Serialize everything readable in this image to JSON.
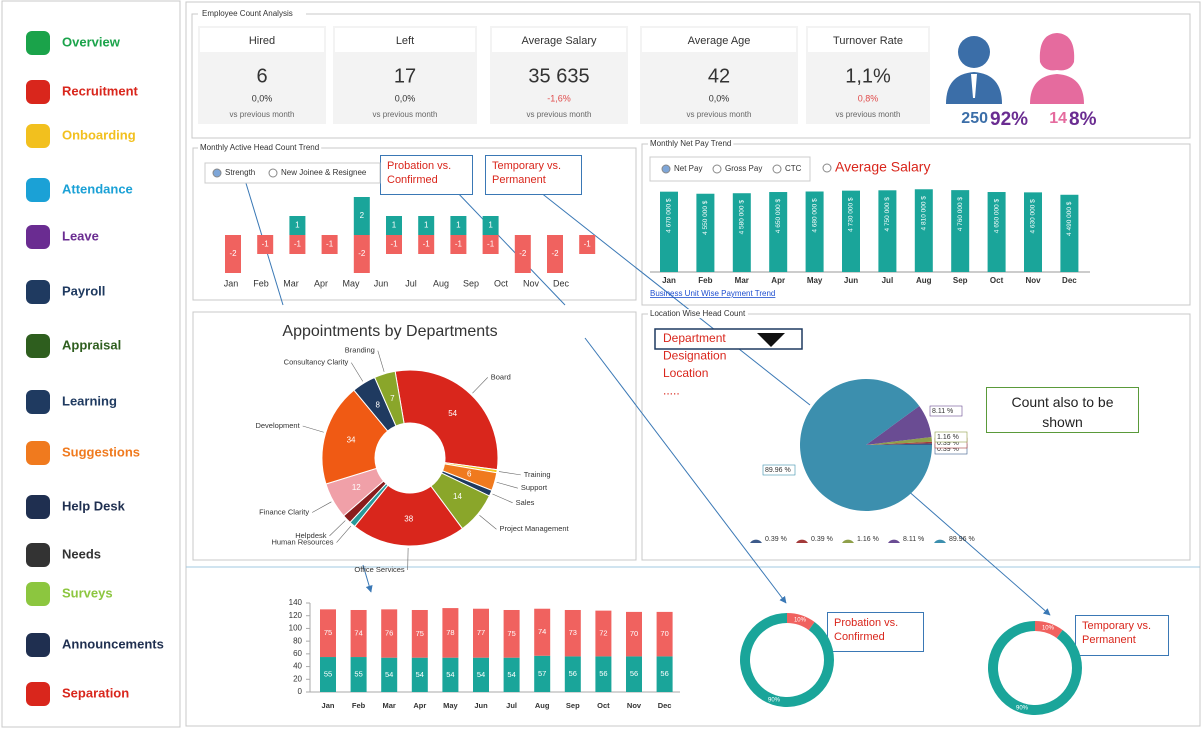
{
  "sidebar": {
    "items": [
      {
        "label": "Overview",
        "color": "#1aa34a"
      },
      {
        "label": "Recruitment",
        "color": "#d9261c"
      },
      {
        "label": "Onboarding",
        "color": "#f2c01e"
      },
      {
        "label": "Attendance",
        "color": "#1ba1d6"
      },
      {
        "label": "Leave",
        "color": "#6a2c91"
      },
      {
        "label": "Payroll",
        "color": "#1f3a60"
      },
      {
        "label": "Appraisal",
        "color": "#2e5e1e"
      },
      {
        "label": "Learning",
        "color": "#1f3a60"
      },
      {
        "label": "Suggestions",
        "color": "#f07a1e"
      },
      {
        "label": "Help Desk",
        "color": "#1f2f50"
      },
      {
        "label": "Needs",
        "color": "#333333"
      },
      {
        "label": "Surveys",
        "color": "#8cc63f"
      },
      {
        "label": "Announcements",
        "color": "#1f2f50"
      },
      {
        "label": "Separation",
        "color": "#d9261c"
      }
    ]
  },
  "kpi": {
    "section_title": "Employee Count Analysis",
    "cards": [
      {
        "title": "Hired",
        "value": "6",
        "change": "0,0%",
        "note": "vs previous month",
        "change_color": "#333333"
      },
      {
        "title": "Left",
        "value": "17",
        "change": "0,0%",
        "note": "vs previous month",
        "change_color": "#333333"
      },
      {
        "title": "Average Salary",
        "value": "35 635",
        "change": "-1,6%",
        "note": "vs previous month",
        "change_color": "#e04b4b"
      },
      {
        "title": "Average Age",
        "value": "42",
        "change": "0,0%",
        "note": "vs previous month",
        "change_color": "#333333"
      },
      {
        "title": "Turnover Rate",
        "value": "1,1%",
        "change": "0,8%",
        "note": "vs previous month",
        "change_color": "#e04b4b"
      }
    ]
  },
  "gender": {
    "male": {
      "count": "250",
      "share": "92%"
    },
    "female": {
      "count": "14",
      "share": "8%"
    }
  },
  "note": "Count also to be shown",
  "chart_data": [
    {
      "type": "bar",
      "title": "Monthly Active Head Count Trend",
      "options": [
        "Strength",
        "New Joinee & Resignee"
      ],
      "categories": [
        "Jan",
        "Feb",
        "Mar",
        "Apr",
        "May",
        "Jun",
        "Jul",
        "Aug",
        "Sep",
        "Oct",
        "Nov",
        "Dec"
      ],
      "series": [
        {
          "color": "#1aa59a",
          "values": [
            null,
            null,
            1,
            null,
            2,
            1,
            1,
            1,
            1,
            null,
            null,
            null
          ]
        },
        {
          "color": "#f0625f",
          "values": [
            -2,
            -1,
            -1,
            -1,
            -2,
            -1,
            -1,
            -1,
            -1,
            -2,
            -2,
            -1
          ]
        }
      ],
      "ylim": [
        -2.5,
        2.2
      ]
    },
    {
      "type": "bar",
      "title": "Monthly Net Pay Trend",
      "options": [
        "Net Pay",
        "Gross Pay",
        "CTC"
      ],
      "alt_option": "Average Salary",
      "categories": [
        "Jan",
        "Feb",
        "Mar",
        "Apr",
        "May",
        "Jun",
        "Jul",
        "Aug",
        "Sep",
        "Oct",
        "Nov",
        "Dec"
      ],
      "values": [
        4670000,
        4550000,
        4580000,
        4650000,
        4680000,
        4730000,
        4750000,
        4810000,
        4760000,
        4650000,
        4630000,
        4490000
      ],
      "value_labels": [
        "4 670 000 $",
        "4 550 000 $",
        "4 580 000 $",
        "4 650 000 $",
        "4 680 000 $",
        "4 730 000 $",
        "4 750 000 $",
        "4 810 000 $",
        "4 760 000 $",
        "4 650 000 $",
        "4 630 000 $",
        "4 490 000 $"
      ],
      "color": "#1aa59a",
      "ylim": [
        0,
        5000000
      ],
      "link": "Business Unit Wise Payment Trend"
    },
    {
      "type": "donut",
      "title": "Appointments by Departments",
      "categories": [
        "Board",
        "Training",
        "Support",
        "Sales",
        "Project Management",
        "Office Services",
        "Human Resources",
        "Helpdesk",
        "Finance Clarity",
        "Development",
        "Consultancy Clarity",
        "Branding"
      ],
      "values": [
        54,
        1,
        6,
        2,
        14,
        38,
        2,
        3,
        12,
        34,
        8,
        7
      ],
      "colors": [
        "#d9261c",
        "#f2c81e",
        "#f07a1e",
        "#1f3a60",
        "#8aa62a",
        "#d9261c",
        "#2a9a9a",
        "#8a1c1c",
        "#f0a0a8",
        "#f05a14",
        "#1f3a60",
        "#8aa62a"
      ]
    },
    {
      "type": "pie",
      "title": "Location Wise Head Count",
      "filter_options": [
        "Department",
        "Designation",
        "Location",
        "....."
      ],
      "values": [
        0.39,
        0.39,
        1.16,
        8.11,
        89.96
      ],
      "value_labels": [
        "0.39 %",
        "0.39 %",
        "1.16 %",
        "8.11 %",
        "89.96 %"
      ],
      "colors": [
        "#3d5a8a",
        "#a33a3a",
        "#8fa04a",
        "#6a4c93",
        "#3c8fae"
      ]
    },
    {
      "type": "stacked_bar",
      "categories": [
        "Jan",
        "Feb",
        "Mar",
        "Apr",
        "May",
        "Jun",
        "Jul",
        "Aug",
        "Sep",
        "Oct",
        "Nov",
        "Dec"
      ],
      "series": [
        {
          "color": "#1aa59a",
          "values": [
            55,
            55,
            54,
            54,
            54,
            54,
            54,
            57,
            56,
            56,
            56,
            56
          ]
        },
        {
          "color": "#f0625f",
          "values": [
            75,
            74,
            76,
            75,
            78,
            77,
            75,
            74,
            73,
            72,
            70,
            70
          ]
        }
      ],
      "ylim": [
        0,
        140
      ],
      "yticks": [
        0,
        20,
        40,
        60,
        80,
        100,
        120,
        140
      ]
    },
    {
      "type": "donut",
      "title": "Probation vs. Confirmed",
      "values": [
        10,
        90
      ],
      "value_labels": [
        "10%",
        "90%"
      ],
      "colors": [
        "#f0625f",
        "#1aa59a"
      ]
    },
    {
      "type": "donut",
      "title": "Temporary vs. Permanent",
      "values": [
        10,
        90
      ],
      "value_labels": [
        "10%",
        "90%"
      ],
      "colors": [
        "#f0625f",
        "#1aa59a"
      ]
    }
  ]
}
